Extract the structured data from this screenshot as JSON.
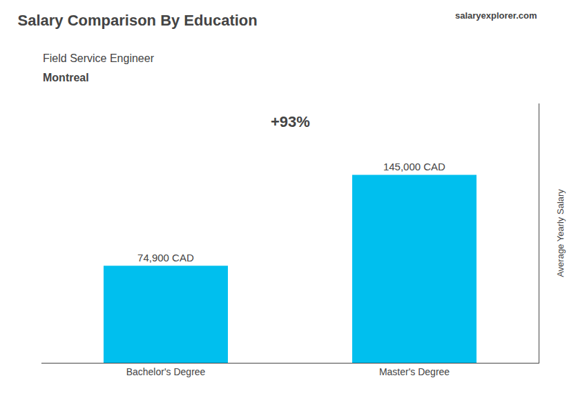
{
  "chart_data": {
    "type": "bar",
    "title": "Salary Comparison By Education",
    "subtitle": "Field Service Engineer",
    "annotations": [
      "Montreal",
      "salaryexplorer.com",
      "+93%"
    ],
    "categories": [
      "Bachelor's Degree",
      "Master's Degree"
    ],
    "values": [
      74900,
      145000
    ],
    "value_labels": [
      "74,900 CAD",
      "145,000 CAD"
    ],
    "data_labels": true,
    "color": "#00BFEE",
    "ylabel": "Average Yearly Salary",
    "ylim": [
      0,
      200000
    ],
    "tick_labels": "x",
    "grid": false
  }
}
